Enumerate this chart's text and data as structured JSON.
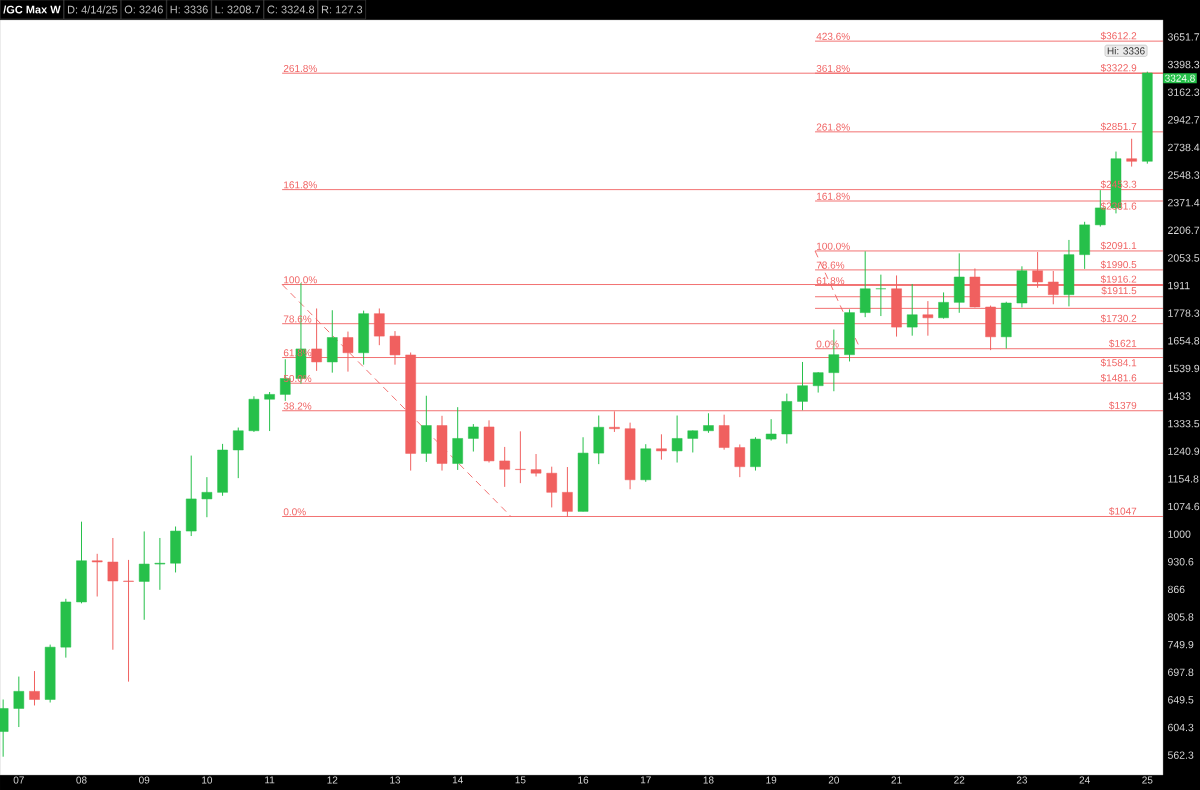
{
  "chart_data": {
    "type": "candlestick",
    "title": "/GC Max W",
    "log": "y",
    "grid": false,
    "xlim": [
      2006.7,
      2025.25
    ],
    "ylim": [
      534,
      3817
    ],
    "xticks": [
      {
        "value": 2007,
        "label": "07"
      },
      {
        "value": 2008,
        "label": "08"
      },
      {
        "value": 2009,
        "label": "09"
      },
      {
        "value": 2010,
        "label": "10"
      },
      {
        "value": 2011,
        "label": "11"
      },
      {
        "value": 2012,
        "label": "12"
      },
      {
        "value": 2013,
        "label": "13"
      },
      {
        "value": 2014,
        "label": "14"
      },
      {
        "value": 2015,
        "label": "15"
      },
      {
        "value": 2016,
        "label": "16"
      },
      {
        "value": 2017,
        "label": "17"
      },
      {
        "value": 2018,
        "label": "18"
      },
      {
        "value": 2019,
        "label": "19"
      },
      {
        "value": 2020,
        "label": "20"
      },
      {
        "value": 2021,
        "label": "21"
      },
      {
        "value": 2022,
        "label": "22"
      },
      {
        "value": 2023,
        "label": "23"
      },
      {
        "value": 2024,
        "label": "24"
      },
      {
        "value": 2025,
        "label": "25"
      }
    ],
    "yticks": [
      562.3,
      604.3,
      649.5,
      697.8,
      749.9,
      805.8,
      866,
      930.6,
      1000,
      1074.6,
      1154.8,
      1240.9,
      1333.5,
      1433,
      1539.9,
      1654.8,
      1778.3,
      1911,
      2053.5,
      2206.7,
      2371.4,
      2548.3,
      2738.4,
      2942.7,
      3162.3,
      3398.3,
      3651.7
    ],
    "x": [
      2006.75,
      2007.0,
      2007.25,
      2007.5,
      2007.75,
      2008.0,
      2008.25,
      2008.5,
      2008.75,
      2009.0,
      2009.25,
      2009.5,
      2009.75,
      2010.0,
      2010.25,
      2010.5,
      2010.75,
      2011.0,
      2011.25,
      2011.5,
      2011.75,
      2012.0,
      2012.25,
      2012.5,
      2012.75,
      2013.0,
      2013.25,
      2013.5,
      2013.75,
      2014.0,
      2014.25,
      2014.5,
      2014.75,
      2015.0,
      2015.25,
      2015.5,
      2015.75,
      2016.0,
      2016.25,
      2016.5,
      2016.75,
      2017.0,
      2017.25,
      2017.5,
      2017.75,
      2018.0,
      2018.25,
      2018.5,
      2018.75,
      2019.0,
      2019.25,
      2019.5,
      2019.75,
      2020.0,
      2020.25,
      2020.5,
      2020.75,
      2021.0,
      2021.25,
      2021.5,
      2021.75,
      2022.0,
      2022.25,
      2022.5,
      2022.75,
      2023.0,
      2023.25,
      2023.5,
      2023.75,
      2024.0,
      2024.25,
      2024.5,
      2024.75,
      2025.0
    ],
    "ohlc": [
      [
        598,
        650,
        560,
        635
      ],
      [
        635,
        690,
        605,
        664
      ],
      [
        664,
        700,
        640,
        650
      ],
      [
        650,
        750,
        645,
        745
      ],
      [
        745,
        845,
        725,
        838
      ],
      [
        838,
        1033,
        835,
        933
      ],
      [
        933,
        950,
        850,
        930
      ],
      [
        930,
        990,
        740,
        885
      ],
      [
        885,
        935,
        681,
        884
      ],
      [
        884,
        1007,
        800,
        925
      ],
      [
        925,
        990,
        865,
        927
      ],
      [
        927,
        1020,
        905,
        1008
      ],
      [
        1008,
        1227,
        995,
        1096
      ],
      [
        1096,
        1160,
        1045,
        1115
      ],
      [
        1115,
        1265,
        1105,
        1245
      ],
      [
        1245,
        1320,
        1157,
        1309
      ],
      [
        1309,
        1432,
        1305,
        1421
      ],
      [
        1421,
        1448,
        1308,
        1439
      ],
      [
        1439,
        1577,
        1415,
        1500
      ],
      [
        1500,
        1923,
        1480,
        1620
      ],
      [
        1620,
        1800,
        1530,
        1566
      ],
      [
        1566,
        1792,
        1523,
        1669
      ],
      [
        1669,
        1695,
        1527,
        1604
      ],
      [
        1604,
        1790,
        1555,
        1776
      ],
      [
        1776,
        1800,
        1636,
        1675
      ],
      [
        1675,
        1697,
        1555,
        1595
      ],
      [
        1595,
        1605,
        1180,
        1234
      ],
      [
        1234,
        1434,
        1207,
        1327
      ],
      [
        1327,
        1361,
        1180,
        1202
      ],
      [
        1202,
        1392,
        1182,
        1283
      ],
      [
        1283,
        1332,
        1240,
        1322
      ],
      [
        1322,
        1345,
        1205,
        1210
      ],
      [
        1210,
        1255,
        1131,
        1184
      ],
      [
        1184,
        1307,
        1142,
        1183
      ],
      [
        1183,
        1232,
        1162,
        1172
      ],
      [
        1172,
        1192,
        1072,
        1115
      ],
      [
        1115,
        1191,
        1046,
        1061
      ],
      [
        1061,
        1287,
        1061,
        1235
      ],
      [
        1235,
        1362,
        1200,
        1321
      ],
      [
        1321,
        1377,
        1305,
        1316
      ],
      [
        1316,
        1337,
        1124,
        1152
      ],
      [
        1152,
        1264,
        1146,
        1249
      ],
      [
        1249,
        1297,
        1214,
        1242
      ],
      [
        1242,
        1362,
        1205,
        1283
      ],
      [
        1283,
        1310,
        1237,
        1309
      ],
      [
        1309,
        1370,
        1302,
        1327
      ],
      [
        1327,
        1365,
        1246,
        1253
      ],
      [
        1253,
        1263,
        1160,
        1192
      ],
      [
        1192,
        1287,
        1180,
        1281
      ],
      [
        1281,
        1349,
        1276,
        1298
      ],
      [
        1298,
        1442,
        1266,
        1413
      ],
      [
        1413,
        1566,
        1381,
        1472
      ],
      [
        1472,
        1525,
        1446,
        1523
      ],
      [
        1523,
        1704,
        1451,
        1596
      ],
      [
        1596,
        1796,
        1568,
        1781
      ],
      [
        1781,
        2089,
        1760,
        1895
      ],
      [
        1895,
        1966,
        1765,
        1895
      ],
      [
        1895,
        1962,
        1673,
        1715
      ],
      [
        1715,
        1919,
        1677,
        1771
      ],
      [
        1771,
        1835,
        1677,
        1757
      ],
      [
        1757,
        1877,
        1753,
        1829
      ],
      [
        1829,
        2078,
        1780,
        1954
      ],
      [
        1954,
        1998,
        1805,
        1807
      ],
      [
        1807,
        1814,
        1615,
        1672
      ],
      [
        1672,
        1832,
        1622,
        1826
      ],
      [
        1826,
        2009,
        1805,
        1986
      ],
      [
        1986,
        2085,
        1900,
        1929
      ],
      [
        1929,
        1985,
        1820,
        1866
      ],
      [
        1866,
        2152,
        1810,
        2071
      ],
      [
        2071,
        2256,
        1996,
        2238
      ],
      [
        2238,
        2450,
        2228,
        2339
      ],
      [
        2339,
        2709,
        2306,
        2659
      ],
      [
        2659,
        2801,
        2605,
        2641
      ],
      [
        2641,
        3336,
        2625,
        3324.8
      ]
    ],
    "colors": [
      "#26c04a",
      "#26c04a",
      "#f0605f",
      "#26c04a",
      "#26c04a",
      "#26c04a",
      "#f0605f",
      "#f0605f",
      "#f0605f",
      "#26c04a",
      "#26c04a",
      "#26c04a",
      "#26c04a",
      "#26c04a",
      "#26c04a",
      "#26c04a",
      "#26c04a",
      "#26c04a",
      "#26c04a",
      "#26c04a",
      "#f0605f",
      "#26c04a",
      "#f0605f",
      "#26c04a",
      "#f0605f",
      "#f0605f",
      "#f0605f",
      "#26c04a",
      "#f0605f",
      "#26c04a",
      "#26c04a",
      "#f0605f",
      "#f0605f",
      "#f0605f",
      "#f0605f",
      "#f0605f",
      "#f0605f",
      "#26c04a",
      "#26c04a",
      "#f0605f",
      "#f0605f",
      "#26c04a",
      "#f0605f",
      "#26c04a",
      "#26c04a",
      "#26c04a",
      "#f0605f",
      "#f0605f",
      "#26c04a",
      "#26c04a",
      "#26c04a",
      "#26c04a",
      "#26c04a",
      "#26c04a",
      "#26c04a",
      "#26c04a",
      "#26c04a",
      "#f0605f",
      "#26c04a",
      "#f0605f",
      "#26c04a",
      "#26c04a",
      "#f0605f",
      "#f0605f",
      "#26c04a",
      "#26c04a",
      "#f0605f",
      "#f0605f",
      "#26c04a",
      "#26c04a",
      "#26c04a",
      "#26c04a",
      "#f0605f",
      "#26c04a"
    ],
    "series": [
      {
        "type": "line",
        "color": "#f06262",
        "x": [
          2011.2,
          2025.25
        ],
        "values": [
          1047,
          1047
        ]
      },
      {
        "type": "line",
        "color": "#f06262",
        "x": [
          2011.2,
          2025.25
        ],
        "values": [
          1379,
          1379
        ]
      },
      {
        "type": "line",
        "color": "#f06262",
        "x": [
          2011.2,
          2025.25
        ],
        "values": [
          1481.6,
          1481.6
        ]
      },
      {
        "type": "line",
        "color": "#f06262",
        "x": [
          2011.2,
          2025.25
        ],
        "values": [
          1584.1,
          1584.1
        ]
      },
      {
        "type": "line",
        "color": "#f06262",
        "x": [
          2011.2,
          2025.25
        ],
        "values": [
          1730.2,
          1730.2
        ]
      },
      {
        "type": "line",
        "color": "#f06262",
        "x": [
          2011.2,
          2025.25
        ],
        "values": [
          1916.2,
          1916.2
        ]
      },
      {
        "type": "line",
        "color": "#f06262",
        "x": [
          2011.2,
          2025.25
        ],
        "values": [
          2453.3,
          2453.3
        ]
      },
      {
        "type": "line",
        "color": "#f06262",
        "x": [
          2011.2,
          2025.25
        ],
        "values": [
          3322.6,
          3322.6
        ]
      },
      {
        "type": "line",
        "color": "#f06262",
        "x": [
          2019.7,
          2025.25
        ],
        "values": [
          1621,
          1621
        ]
      },
      {
        "type": "line",
        "color": "#f06262",
        "x": [
          2019.7,
          2025.25
        ],
        "values": [
          1800.6,
          1800.6
        ]
      },
      {
        "type": "line",
        "color": "#f06262",
        "x": [
          2019.7,
          2025.25
        ],
        "values": [
          1856,
          1856
        ]
      },
      {
        "type": "line",
        "color": "#f06262",
        "x": [
          2019.7,
          2025.25
        ],
        "values": [
          1911.5,
          1911.5
        ]
      },
      {
        "type": "line",
        "color": "#f06262",
        "x": [
          2019.7,
          2025.25
        ],
        "values": [
          1990.5,
          1990.5
        ]
      },
      {
        "type": "line",
        "color": "#f06262",
        "x": [
          2019.7,
          2025.25
        ],
        "values": [
          2091.1,
          2091.1
        ]
      },
      {
        "type": "line",
        "color": "#f06262",
        "x": [
          2019.7,
          2025.25
        ],
        "values": [
          2381.6,
          2381.6
        ]
      },
      {
        "type": "line",
        "color": "#f06262",
        "x": [
          2019.7,
          2025.25
        ],
        "values": [
          2851.7,
          2851.7
        ]
      },
      {
        "type": "line",
        "color": "#f06262",
        "x": [
          2019.7,
          2025.25
        ],
        "values": [
          3322.9,
          3322.9
        ]
      },
      {
        "type": "line",
        "color": "#f06262",
        "x": [
          2019.7,
          2025.25
        ],
        "values": [
          3612.2,
          3612.2
        ]
      },
      {
        "type": "line",
        "color": "#f06262",
        "line_style": "dashed",
        "x": [
          2011.2,
          2014.85
        ],
        "values": [
          1916.2,
          1047
        ]
      },
      {
        "type": "line",
        "color": "#f06262",
        "line_style": "dashed",
        "x": [
          2019.7,
          2020.42
        ],
        "values": [
          2091.1,
          1621
        ]
      }
    ],
    "annotations": [
      "D: 4/14/25",
      "O: 3246",
      "H: 3336",
      "L: 3208.7",
      "C: 3324.8",
      "R: 127.3",
      {
        "text": "0.0%",
        "x": 2011.2,
        "y": 1047
      },
      {
        "text": "38.2%",
        "x": 2011.2,
        "y": 1379
      },
      {
        "text": "50.0%",
        "x": 2011.2,
        "y": 1481.6
      },
      {
        "text": "61.8%",
        "x": 2011.2,
        "y": 1584.1
      },
      {
        "text": "78.6%",
        "x": 2011.2,
        "y": 1730.2
      },
      {
        "text": "100.0%",
        "x": 2011.2,
        "y": 1916.2
      },
      {
        "text": "161.8%",
        "x": 2011.2,
        "y": 2453.3
      },
      {
        "text": "261.8%",
        "x": 2011.2,
        "y": 3322.6
      },
      {
        "text": "0.0%",
        "x": 2019.7,
        "y": 1621
      },
      {
        "text": "61.8%",
        "x": 2019.7,
        "y": 1911.5
      },
      {
        "text": "78.6%",
        "x": 2019.7,
        "y": 1990.5
      },
      {
        "text": "100.0%",
        "x": 2019.7,
        "y": 2091.1
      },
      {
        "text": "161.8%",
        "x": 2019.7,
        "y": 2381.6
      },
      {
        "text": "261.8%",
        "x": 2019.7,
        "y": 2851.7
      },
      {
        "text": "361.8%",
        "x": 2019.7,
        "y": 3322.9
      },
      {
        "text": "423.6%",
        "x": 2019.7,
        "y": 3612.2
      },
      {
        "text": "$1047",
        "x": 2024.85,
        "y": 1047
      },
      {
        "text": "$1379",
        "x": 2024.85,
        "y": 1379
      },
      {
        "text": "$1481.6",
        "x": 2024.85,
        "y": 1481.6
      },
      {
        "text": "$1584.1",
        "x": 2024.85,
        "y": 1584.1
      },
      {
        "text": "$1621",
        "x": 2024.85,
        "y": 1621
      },
      {
        "text": "$1730.2",
        "x": 2024.85,
        "y": 1730.2
      },
      {
        "text": "$1911.5",
        "x": 2024.85,
        "y": 1911.5
      },
      {
        "text": "$1916.2",
        "x": 2024.85,
        "y": 1916.2
      },
      {
        "text": "$1990.5",
        "x": 2024.85,
        "y": 1990.5
      },
      {
        "text": "$2091.1",
        "x": 2024.85,
        "y": 2091.1
      },
      {
        "text": "$2381.6",
        "x": 2024.85,
        "y": 2381.6
      },
      {
        "text": "$2453.3",
        "x": 2024.85,
        "y": 2453.3
      },
      {
        "text": "$2851.7",
        "x": 2024.85,
        "y": 2851.7
      },
      {
        "text": "$3322.9",
        "x": 2024.85,
        "y": 3322.9
      },
      {
        "text": "$3612.2",
        "x": 2024.85,
        "y": 3612.2
      },
      {
        "text": "Hi: 3336",
        "x": 2025.0,
        "y": 3336
      },
      {
        "text": "3324.8",
        "x": 2025.25,
        "y": 3324.8
      }
    ]
  }
}
